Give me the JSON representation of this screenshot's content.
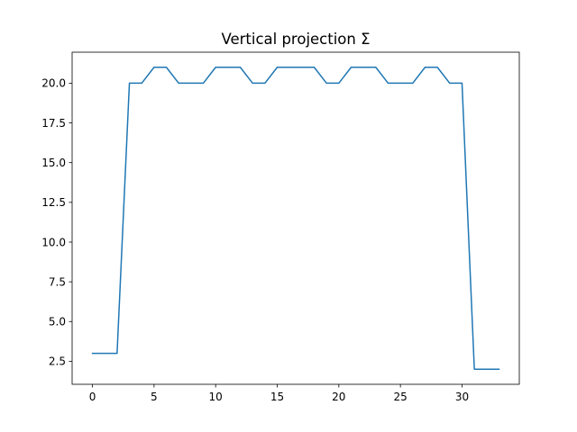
{
  "chart_data": {
    "type": "line",
    "title": "Vertical projection Σ",
    "xlabel": "",
    "ylabel": "",
    "xlim": [
      -1.65,
      34.65
    ],
    "ylim": [
      1.05,
      21.95
    ],
    "xticks": [
      0,
      5,
      10,
      15,
      20,
      25,
      30
    ],
    "yticks": [
      2.5,
      5.0,
      7.5,
      10.0,
      12.5,
      15.0,
      17.5,
      20.0
    ],
    "grid": false,
    "legend": "none",
    "series": [
      {
        "color": "#1f77b4",
        "x": [
          0,
          1,
          2,
          3,
          4,
          5,
          6,
          7,
          8,
          9,
          10,
          11,
          12,
          13,
          14,
          15,
          16,
          17,
          18,
          19,
          20,
          21,
          22,
          23,
          24,
          25,
          26,
          27,
          28,
          29,
          30,
          31,
          32,
          33
        ],
        "y": [
          3,
          3,
          3,
          20,
          20,
          21,
          21,
          20,
          20,
          20,
          21,
          21,
          21,
          20,
          20,
          21,
          21,
          21,
          21,
          20,
          20,
          21,
          21,
          21,
          20,
          20,
          20,
          21,
          21,
          20,
          20,
          2,
          2,
          2
        ]
      }
    ]
  }
}
